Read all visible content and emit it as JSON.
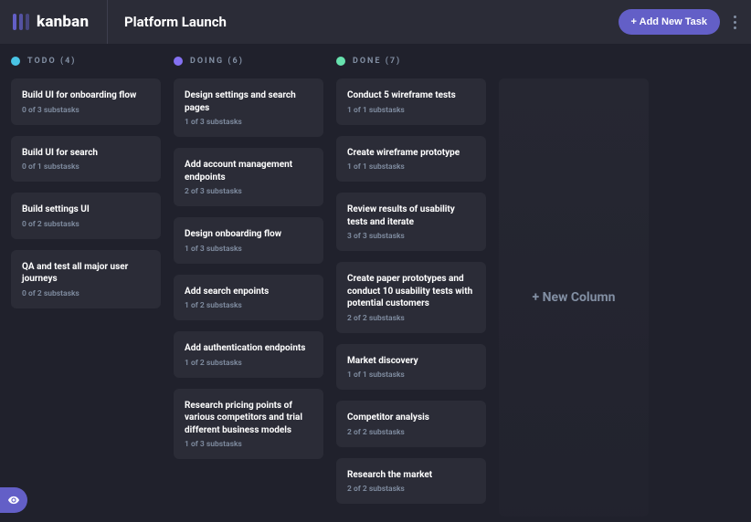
{
  "logo_text": "kanban",
  "board_title": "Platform Launch",
  "add_task_label": "+ Add New Task",
  "new_column_label": "+ New Column",
  "colors": {
    "bg": "#20212c",
    "panel": "#2b2c37",
    "accent": "#635fc7",
    "muted": "#828fa3",
    "todo_dot": "#49c4e5",
    "doing_dot": "#8471f2",
    "done_dot": "#67e2ae"
  },
  "columns": [
    {
      "name": "TODO",
      "count": 4,
      "dot": "#49c4e5",
      "tasks": [
        {
          "title": "Build UI for onboarding flow",
          "sub": "0 of 3 substasks"
        },
        {
          "title": "Build UI for search",
          "sub": "0 of 1 substasks"
        },
        {
          "title": "Build settings UI",
          "sub": "0 of 2 substasks"
        },
        {
          "title": "QA and test all major user journeys",
          "sub": "0 of 2 substasks"
        }
      ]
    },
    {
      "name": "DOING",
      "count": 6,
      "dot": "#8471f2",
      "tasks": [
        {
          "title": "Design settings and search pages",
          "sub": "1 of 3 substasks"
        },
        {
          "title": "Add account management endpoints",
          "sub": "2 of 3 substasks"
        },
        {
          "title": "Design onboarding flow",
          "sub": "1 of 3 substasks"
        },
        {
          "title": "Add search enpoints",
          "sub": "1 of 2 substasks"
        },
        {
          "title": "Add authentication endpoints",
          "sub": "1 of 2 substasks"
        },
        {
          "title": "Research pricing points of various competitors and trial different business models",
          "sub": "1 of 3 substasks"
        }
      ]
    },
    {
      "name": "DONE",
      "count": 7,
      "dot": "#67e2ae",
      "tasks": [
        {
          "title": "Conduct 5 wireframe tests",
          "sub": "1 of 1 substasks"
        },
        {
          "title": "Create wireframe prototype",
          "sub": "1 of 1 substasks"
        },
        {
          "title": "Review results of usability tests and iterate",
          "sub": "3 of 3 substasks"
        },
        {
          "title": "Create paper prototypes and conduct 10 usability tests with potential customers",
          "sub": "2 of 2 substasks"
        },
        {
          "title": "Market discovery",
          "sub": "1 of 1 substasks"
        },
        {
          "title": "Competitor analysis",
          "sub": "2 of 2 substasks"
        },
        {
          "title": "Research the market",
          "sub": "2 of 2 substasks"
        }
      ]
    }
  ]
}
